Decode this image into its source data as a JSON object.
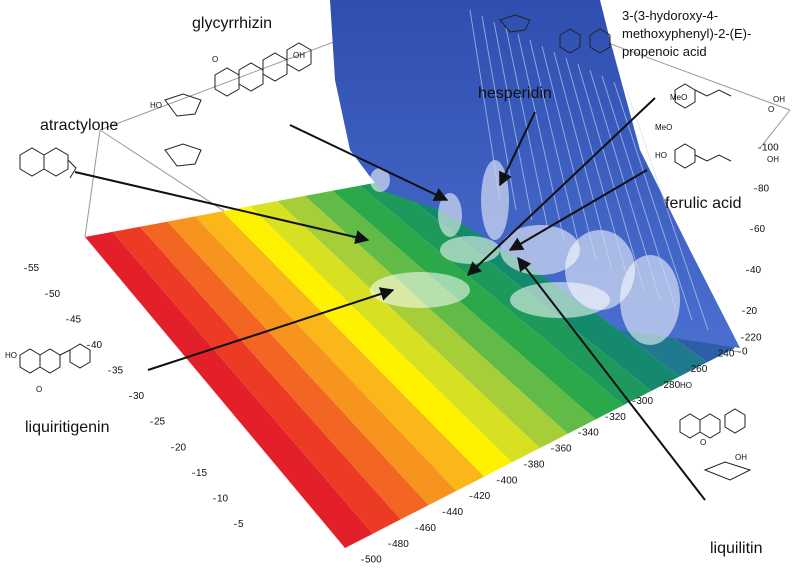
{
  "chart_data": {
    "type": "surface3d",
    "xlim": [
      0,
      60
    ],
    "xticks": [
      5,
      10,
      15,
      20,
      25,
      30,
      35,
      40,
      45,
      50,
      55
    ],
    "ylim": [
      200,
      500
    ],
    "yticks": [
      220,
      240,
      260,
      280,
      300,
      320,
      340,
      360,
      380,
      400,
      420,
      440,
      460,
      480,
      500
    ],
    "zlim": [
      0,
      100
    ],
    "zticks": [
      0,
      20,
      40,
      60,
      80,
      100
    ],
    "annotations": [
      {
        "lines": [
          "glycyrrhizin"
        ]
      },
      {
        "lines": [
          "atractylone"
        ]
      },
      {
        "lines": [
          "hesperidin"
        ]
      },
      {
        "lines": [
          "3-(3-hydoroxy-4-",
          "methoxyphenyl)-2-(E)-",
          "propenoic acid"
        ]
      },
      {
        "lines": [
          "ferulic acid"
        ]
      },
      {
        "lines": [
          "liquiritigenin"
        ]
      },
      {
        "lines": [
          "liquilitin"
        ]
      }
    ],
    "atom_labels": [
      "HO",
      "MeO",
      "OH",
      "O",
      "MeO",
      "HO",
      "OH",
      "HO",
      "O",
      "HO",
      "O",
      "OH",
      "O",
      "OH"
    ]
  }
}
